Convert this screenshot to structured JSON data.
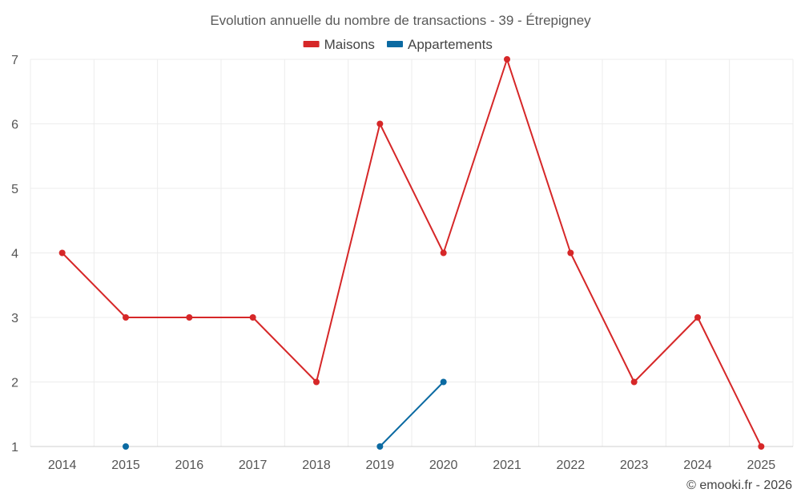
{
  "chart_data": {
    "type": "line",
    "title": "Evolution annuelle du nombre de transactions - 39 - Étrepigney",
    "x": [
      2014,
      2015,
      2016,
      2017,
      2018,
      2019,
      2020,
      2021,
      2022,
      2023,
      2024,
      2025
    ],
    "ylim": [
      1,
      7
    ],
    "yticks": [
      1,
      2,
      3,
      4,
      5,
      6,
      7
    ],
    "grid": true,
    "legend_position": "top-center",
    "series": [
      {
        "name": "Maisons",
        "color": "#d62728",
        "values": [
          4,
          3,
          3,
          3,
          2,
          6,
          4,
          7,
          4,
          2,
          3,
          1
        ]
      },
      {
        "name": "Appartements",
        "color": "#0b6aa2",
        "values": [
          null,
          1,
          null,
          null,
          null,
          1,
          2,
          null,
          null,
          null,
          null,
          null
        ]
      }
    ]
  },
  "credit": "© emooki.fr - 2026"
}
